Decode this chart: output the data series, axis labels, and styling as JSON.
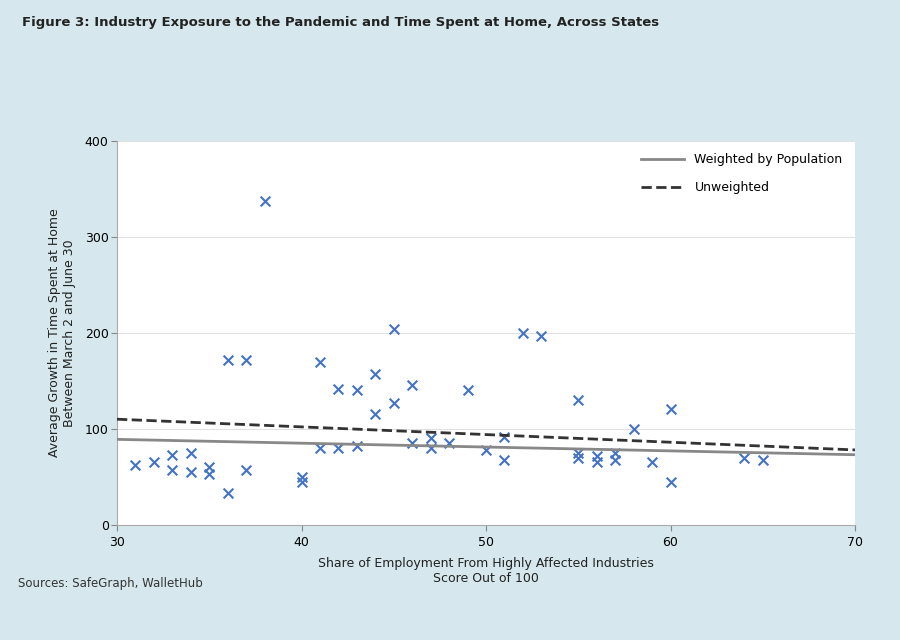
{
  "title": "Figure 3: Industry Exposure to the Pandemic and Time Spent at Home, Across States",
  "xlabel": "Share of Employment From Highly Affected Industries\nScore Out of 100",
  "ylabel": "Average Growth in Time Spent at Home\nBetween March 2 and June 30",
  "sources": "Sources: SafeGraph, WalletHub",
  "xlim": [
    30,
    70
  ],
  "ylim": [
    0,
    400
  ],
  "xticks": [
    30,
    40,
    50,
    60,
    70
  ],
  "yticks": [
    0,
    100,
    200,
    300,
    400
  ],
  "scatter_x": [
    31,
    32,
    33,
    33,
    34,
    34,
    35,
    35,
    36,
    36,
    37,
    37,
    38,
    40,
    40,
    41,
    41,
    42,
    42,
    43,
    43,
    44,
    44,
    45,
    45,
    46,
    46,
    47,
    47,
    48,
    49,
    50,
    51,
    51,
    52,
    53,
    55,
    55,
    55,
    56,
    56,
    57,
    57,
    58,
    59,
    60,
    60,
    64,
    65
  ],
  "scatter_y": [
    62,
    65,
    73,
    57,
    55,
    75,
    53,
    60,
    172,
    33,
    172,
    57,
    337,
    50,
    45,
    170,
    80,
    141,
    80,
    140,
    82,
    157,
    115,
    204,
    127,
    146,
    85,
    90,
    80,
    85,
    140,
    78,
    91,
    68,
    200,
    197,
    75,
    70,
    130,
    72,
    65,
    75,
    68,
    100,
    65,
    121,
    45,
    70,
    68
  ],
  "marker_color": "#4472c4",
  "marker_size": 7,
  "weighted_line_x": [
    30,
    70
  ],
  "weighted_line_y": [
    89,
    73
  ],
  "unweighted_line_x": [
    30,
    70
  ],
  "unweighted_line_y": [
    110,
    78
  ],
  "weighted_line_color": "#888888",
  "unweighted_line_color": "#333333",
  "legend_solid": "Weighted by Population",
  "legend_dashed": "Unweighted",
  "outer_background": "#d6e8ed",
  "panel_background": "#ffffff",
  "title_fontsize": 9.5,
  "label_fontsize": 9,
  "tick_fontsize": 9,
  "sources_fontsize": 8.5
}
